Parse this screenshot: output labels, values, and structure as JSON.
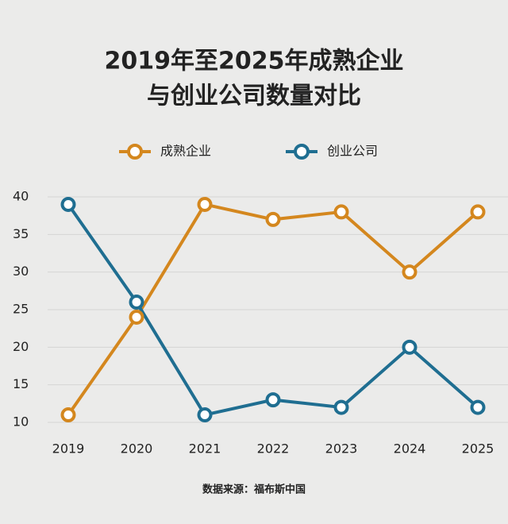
{
  "chart_data": {
    "type": "line",
    "title": [
      "2019年至2025年成熟企业",
      "与创业公司数量对比"
    ],
    "categories": [
      "2019",
      "2020",
      "2021",
      "2022",
      "2023",
      "2024",
      "2025"
    ],
    "series": [
      {
        "name": "成熟企业",
        "color": "#d4871e",
        "values": [
          11,
          24,
          39,
          37,
          38,
          30,
          38
        ]
      },
      {
        "name": "创业公司",
        "color": "#1f6e91",
        "values": [
          39,
          26,
          11,
          13,
          12,
          20,
          12
        ]
      }
    ],
    "ylim": [
      10,
      40
    ],
    "yticks": [
      10,
      15,
      20,
      25,
      30,
      35,
      40
    ],
    "grid": true,
    "legend": "top",
    "source": "数据来源：福布斯中国"
  }
}
